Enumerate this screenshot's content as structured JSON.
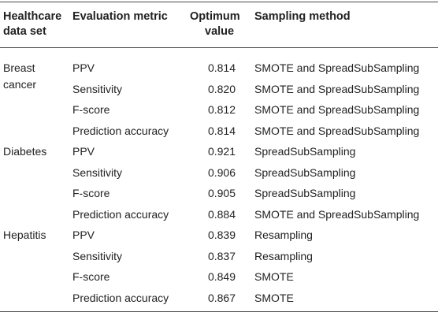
{
  "headers": {
    "dataset_line1": "Healthcare",
    "dataset_line2": "data set",
    "metric": "Evaluation metric",
    "value_line1": "Optimum",
    "value_line2": "value",
    "method": "Sampling method"
  },
  "groups": [
    {
      "dataset_line1": "Breast",
      "dataset_line2": "cancer",
      "rows": [
        {
          "metric": "PPV",
          "value": "0.814",
          "method": "SMOTE and SpreadSubSampling"
        },
        {
          "metric": "Sensitivity",
          "value": "0.820",
          "method": "SMOTE and SpreadSubSampling"
        },
        {
          "metric": "F-score",
          "value": "0.812",
          "method": "SMOTE and SpreadSubSampling"
        },
        {
          "metric": "Prediction accuracy",
          "value": "0.814",
          "method": "SMOTE and SpreadSubSampling"
        }
      ]
    },
    {
      "dataset_line1": "Diabetes",
      "dataset_line2": "",
      "rows": [
        {
          "metric": "PPV",
          "value": "0.921",
          "method": "SpreadSubSampling"
        },
        {
          "metric": "Sensitivity",
          "value": "0.906",
          "method": "SpreadSubSampling"
        },
        {
          "metric": "F-score",
          "value": "0.905",
          "method": "SpreadSubSampling"
        },
        {
          "metric": "Prediction accuracy",
          "value": "0.884",
          "method": "SMOTE and SpreadSubSampling"
        }
      ]
    },
    {
      "dataset_line1": "Hepatitis",
      "dataset_line2": "",
      "rows": [
        {
          "metric": "PPV",
          "value": "0.839",
          "method": "Resampling"
        },
        {
          "metric": "Sensitivity",
          "value": "0.837",
          "method": "Resampling"
        },
        {
          "metric": "F-score",
          "value": "0.849",
          "method": "SMOTE"
        },
        {
          "metric": "Prediction accuracy",
          "value": "0.867",
          "method": "SMOTE"
        }
      ]
    }
  ]
}
